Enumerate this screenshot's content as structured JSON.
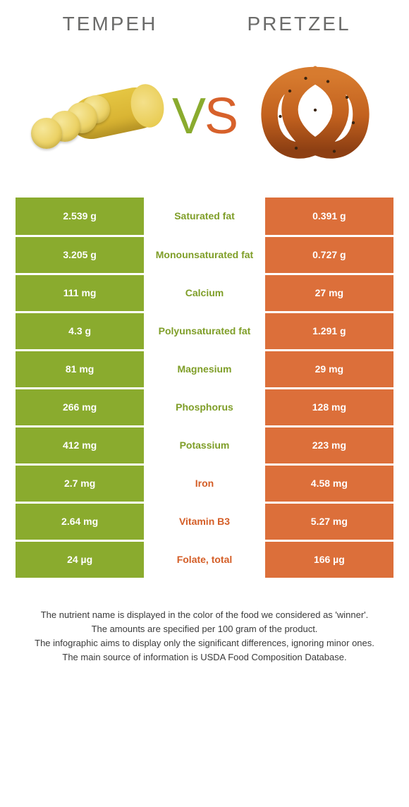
{
  "colors": {
    "green": "#8aab2e",
    "orange": "#dc6f3a",
    "title_text": "#6b6b6a",
    "nutrient_green_text": "#7f9e28",
    "nutrient_orange_text": "#d45e27"
  },
  "food_left": {
    "title": "TEMPEH"
  },
  "food_right": {
    "title": "PRETZEL"
  },
  "vs": {
    "v": "V",
    "s": "S"
  },
  "rows": [
    {
      "left": "2.539 g",
      "name": "Saturated fat",
      "right": "0.391 g",
      "winner": "left"
    },
    {
      "left": "3.205 g",
      "name": "Monounsaturated fat",
      "right": "0.727 g",
      "winner": "left"
    },
    {
      "left": "111 mg",
      "name": "Calcium",
      "right": "27 mg",
      "winner": "left"
    },
    {
      "left": "4.3 g",
      "name": "Polyunsaturated fat",
      "right": "1.291 g",
      "winner": "left"
    },
    {
      "left": "81 mg",
      "name": "Magnesium",
      "right": "29 mg",
      "winner": "left"
    },
    {
      "left": "266 mg",
      "name": "Phosphorus",
      "right": "128 mg",
      "winner": "left"
    },
    {
      "left": "412 mg",
      "name": "Potassium",
      "right": "223 mg",
      "winner": "left"
    },
    {
      "left": "2.7 mg",
      "name": "Iron",
      "right": "4.58 mg",
      "winner": "right"
    },
    {
      "left": "2.64 mg",
      "name": "Vitamin B3",
      "right": "5.27 mg",
      "winner": "right"
    },
    {
      "left": "24 µg",
      "name": "Folate, total",
      "right": "166 µg",
      "winner": "right"
    }
  ],
  "notes": [
    "The nutrient name is displayed in the color of the food we considered as 'winner'.",
    "The amounts are specified per 100 gram of the product.",
    "The infographic aims to display only the significant differences, ignoring minor ones.",
    "The main source of information is USDA Food Composition Database."
  ]
}
